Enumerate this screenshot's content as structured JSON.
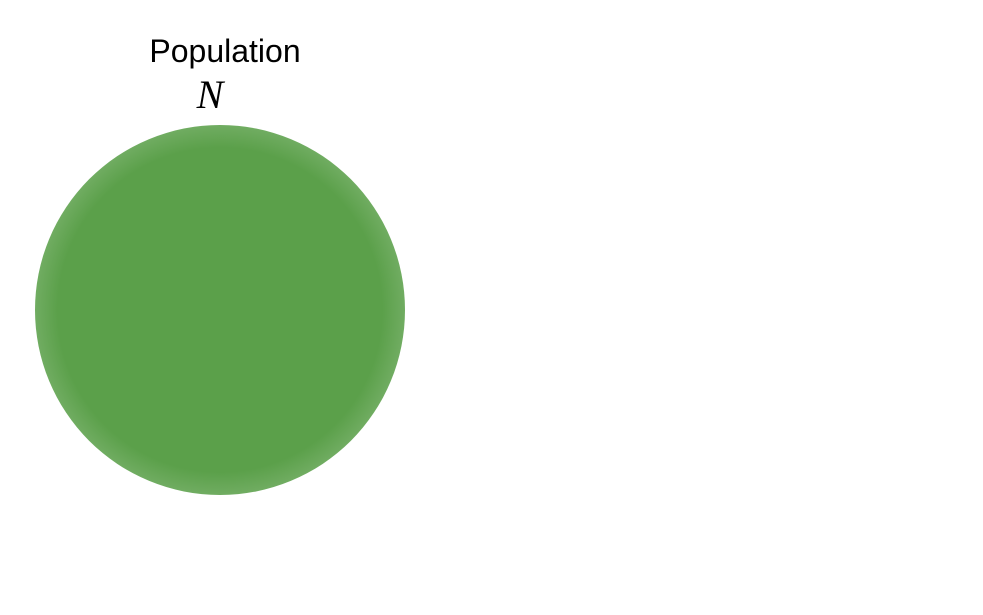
{
  "diagram": {
    "population_label": "Population",
    "population_symbol": "N",
    "blob_color": "#5ba04a",
    "background_color": "#ffffff"
  }
}
